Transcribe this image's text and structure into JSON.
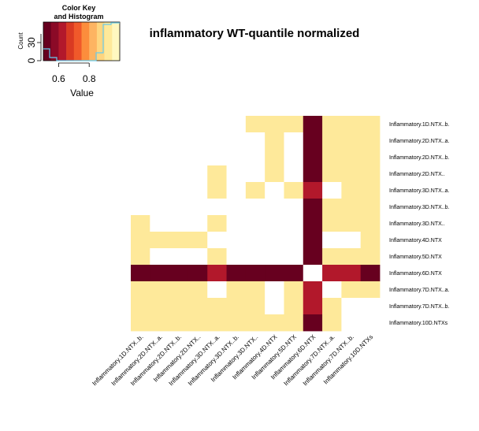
{
  "chart_data": {
    "type": "heatmap",
    "title": "inflammatory WT-quantile normalized",
    "rows": [
      "Inflammatory.1D.NTX..b.",
      "Inflammatory.2D.NTX..a.",
      "Inflammatory.2D.NTX..b.",
      "Inflammatory.2D.NTX..",
      "Inflammatory.3D.NTX..a.",
      "Inflammatory.3D.NTX..b.",
      "Inflammatory.3D.NTX..",
      "Inflammatory.4D.NTX",
      "Inflammatory.5D.NTX",
      "Inflammatory.6D.NTX",
      "Inflammatory.7D.NTX..a.",
      "Inflammatory.7D.NTX..b.",
      "Inflammatory.10D.NTXs"
    ],
    "columns": [
      "Inflammatory.1D.NTX..b.",
      "Inflammatory.2D.NTX..a.",
      "Inflammatory.2D.NTX..b.",
      "Inflammatory.2D.NTX..",
      "Inflammatory.3D.NTX..a.",
      "Inflammatory.3D.NTX..b.",
      "Inflammatory.3D.NTX..",
      "Inflammatory.4D.NTX",
      "Inflammatory.5D.NTX",
      "Inflammatory.6D.NTX",
      "Inflammatory.7D.NTX..a.",
      "Inflammatory.7D.NTX..b.",
      "Inflammatory.10D.NTXs"
    ],
    "values": [
      [
        1,
        1,
        1,
        1,
        1,
        1,
        0.94,
        0.94,
        0.94,
        0.52,
        0.9,
        0.94,
        0.94
      ],
      [
        1,
        1,
        1,
        1,
        1,
        1,
        1,
        0.94,
        1,
        0.52,
        0.94,
        0.94,
        0.94
      ],
      [
        1,
        1,
        1,
        1,
        1,
        1,
        1,
        0.94,
        1,
        0.52,
        0.94,
        0.9,
        0.94
      ],
      [
        1,
        1,
        1,
        1,
        0.94,
        1,
        1,
        0.94,
        1,
        0.52,
        0.9,
        0.9,
        0.94
      ],
      [
        1,
        1,
        1,
        1,
        0.94,
        1,
        0.94,
        1,
        0.94,
        0.6,
        1,
        0.94,
        0.94
      ],
      [
        1,
        1,
        1,
        1,
        1,
        1,
        1,
        1,
        1,
        0.52,
        0.94,
        0.94,
        0.94
      ],
      [
        0.94,
        1,
        1,
        1,
        0.94,
        1,
        1,
        1,
        1,
        0.52,
        0.94,
        0.9,
        0.94
      ],
      [
        0.94,
        0.94,
        0.94,
        0.94,
        1,
        1,
        1,
        1,
        1,
        0.52,
        1,
        1,
        0.94
      ],
      [
        0.94,
        1,
        1,
        1,
        0.94,
        1,
        1,
        1,
        1,
        0.52,
        0.94,
        0.94,
        0.94
      ],
      [
        0.52,
        0.52,
        0.52,
        0.52,
        0.6,
        0.52,
        0.52,
        0.52,
        0.52,
        1,
        0.6,
        0.6,
        0.52
      ],
      [
        0.9,
        0.94,
        0.94,
        0.9,
        1,
        0.94,
        0.94,
        1,
        0.94,
        0.6,
        1,
        0.94,
        0.94
      ],
      [
        0.94,
        0.94,
        0.9,
        0.9,
        0.94,
        0.94,
        0.9,
        1,
        0.94,
        0.6,
        0.94,
        1,
        1
      ],
      [
        0.94,
        0.94,
        0.94,
        0.94,
        0.94,
        0.94,
        0.94,
        0.94,
        0.94,
        0.52,
        0.94,
        1,
        1
      ]
    ],
    "color_key": {
      "title_lines": [
        "Color Key",
        "and Histogram"
      ],
      "xlabel": "Value",
      "ylabel": "Count",
      "x_ticks": [
        "0.6",
        "0.8"
      ],
      "y_ticks": [
        "0",
        "30"
      ],
      "x_range": [
        0.5,
        1.0
      ],
      "breaks": [
        0.5,
        0.55,
        0.6,
        0.65,
        0.7,
        0.75,
        0.8,
        0.85,
        0.9,
        0.95,
        1.0
      ],
      "colors": [
        "#67001F",
        "#8B0A27",
        "#B2182B",
        "#D93A22",
        "#F0592A",
        "#FC8D3C",
        "#FDB462",
        "#FED57F",
        "#FEE99A",
        "#FFF8C0"
      ],
      "histogram_line_color": "#66CCEE"
    },
    "legend_position": "top-left",
    "grid": false
  }
}
